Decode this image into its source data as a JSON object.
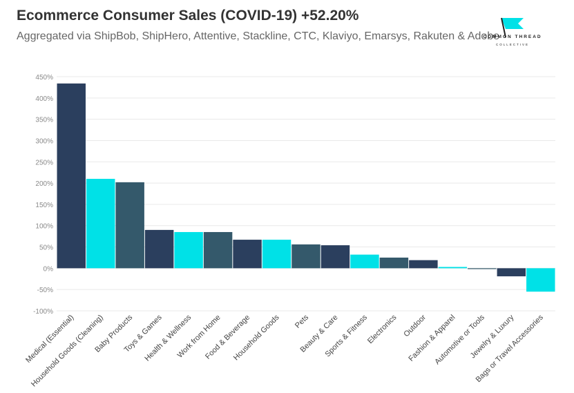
{
  "header": {
    "title": "Ecommerce Consumer Sales (COVID-19) +52.20%",
    "subtitle": "Aggregated via ShipBob, ShipHero, Attentive, Stackline, CTC, Klaviyo, Emarsys, Rakuten & Adobe"
  },
  "logo": {
    "name": "COMMON THREAD",
    "sub": "COLLECTIVE",
    "icon": "flag-logo-icon"
  },
  "colors": {
    "navy": "#2b3f5e",
    "cyan": "#00e1e7",
    "slate": "#34596b",
    "grid": "#e9e9e9",
    "tick": "#888888"
  },
  "chart_data": {
    "type": "bar",
    "categories": [
      "Medical (Essential)",
      "Household Goods (Cleaning)",
      "Baby Products",
      "Toys & Games",
      "Health & Wellness",
      "Work from Home",
      "Food & Beverage",
      "Household Goods",
      "Pets",
      "Beauty & Care",
      "Sports & Fitness",
      "Electronics",
      "Outdoor",
      "Fashion & Apparel",
      "Automotive or Tools",
      "Jewelry & Luxury",
      "Bags or Travel Accessories"
    ],
    "values": [
      434,
      210,
      202,
      90,
      85,
      85,
      67,
      67,
      56,
      54,
      32,
      25,
      19,
      3,
      -2,
      -19,
      -55
    ],
    "bar_colors": [
      "navy",
      "cyan",
      "slate",
      "navy",
      "cyan",
      "slate",
      "navy",
      "cyan",
      "slate",
      "navy",
      "cyan",
      "slate",
      "navy",
      "cyan",
      "slate",
      "navy",
      "cyan"
    ],
    "ylim": [
      -100,
      450
    ],
    "yticks": [
      -100,
      -50,
      0,
      50,
      100,
      150,
      200,
      250,
      300,
      350,
      400,
      450
    ],
    "ytick_labels": [
      "-100%",
      "-50%",
      "0%",
      "50%",
      "100%",
      "150%",
      "200%",
      "250%",
      "300%",
      "350%",
      "400%",
      "450%"
    ],
    "grid": true,
    "legend": false
  }
}
